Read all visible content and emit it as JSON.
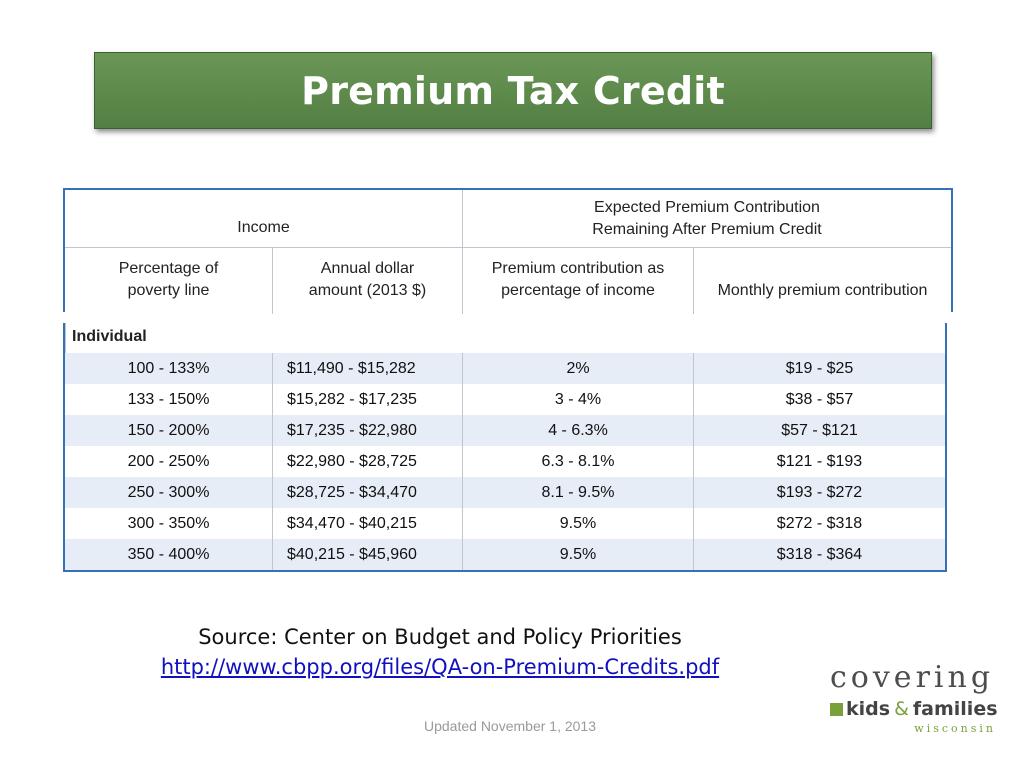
{
  "title": "Premium Tax Credit",
  "table": {
    "header": {
      "income_group": "Income",
      "expected_group": [
        "Expected Premium Contribution",
        "Remaining After Premium Credit"
      ],
      "col1": [
        "Percentage of",
        "poverty line"
      ],
      "col2": [
        "Annual dollar",
        "amount (2013 $)"
      ],
      "col3": [
        "Premium contribution as",
        "percentage of income"
      ],
      "col4": "Monthly premium contribution"
    },
    "group_label": "Individual",
    "rows": [
      {
        "poverty": "100 - 133%",
        "dollars": "$11,490 - $15,282",
        "pct": "2%",
        "monthly": "$19 - $25"
      },
      {
        "poverty": "133 - 150%",
        "dollars": "$15,282 - $17,235",
        "pct": "3 - 4%",
        "monthly": "$38 - $57"
      },
      {
        "poverty": "150 - 200%",
        "dollars": "$17,235 - $22,980",
        "pct": "4 - 6.3%",
        "monthly": "$57 - $121"
      },
      {
        "poverty": "200 - 250%",
        "dollars": "$22,980 - $28,725",
        "pct": "6.3 - 8.1%",
        "monthly": "$121 - $193"
      },
      {
        "poverty": "250 - 300%",
        "dollars": "$28,725 - $34,470",
        "pct": "8.1 - 9.5%",
        "monthly": "$193 - $272"
      },
      {
        "poverty": "300 - 350%",
        "dollars": "$34,470 - $40,215",
        "pct": "9.5%",
        "monthly": "$272 - $318"
      },
      {
        "poverty": "350 - 400%",
        "dollars": "$40,215 - $45,960",
        "pct": "9.5%",
        "monthly": "$318 - $364"
      }
    ]
  },
  "source": {
    "text": "Source: Center on Budget and Policy Priorities",
    "link": "http://www.cbpp.org/files/QA-on-Premium-Credits.pdf"
  },
  "updated": "Updated November 1, 2013",
  "logo": {
    "line1": "covering",
    "kids": "kids",
    "amp": "&",
    "families": "families",
    "state": "wisconsin"
  },
  "colors": {
    "title_bar": "#5e8a4c",
    "table_border": "#3670b8",
    "row_shade": "#e6edf7",
    "logo_green": "#7aa03c"
  }
}
